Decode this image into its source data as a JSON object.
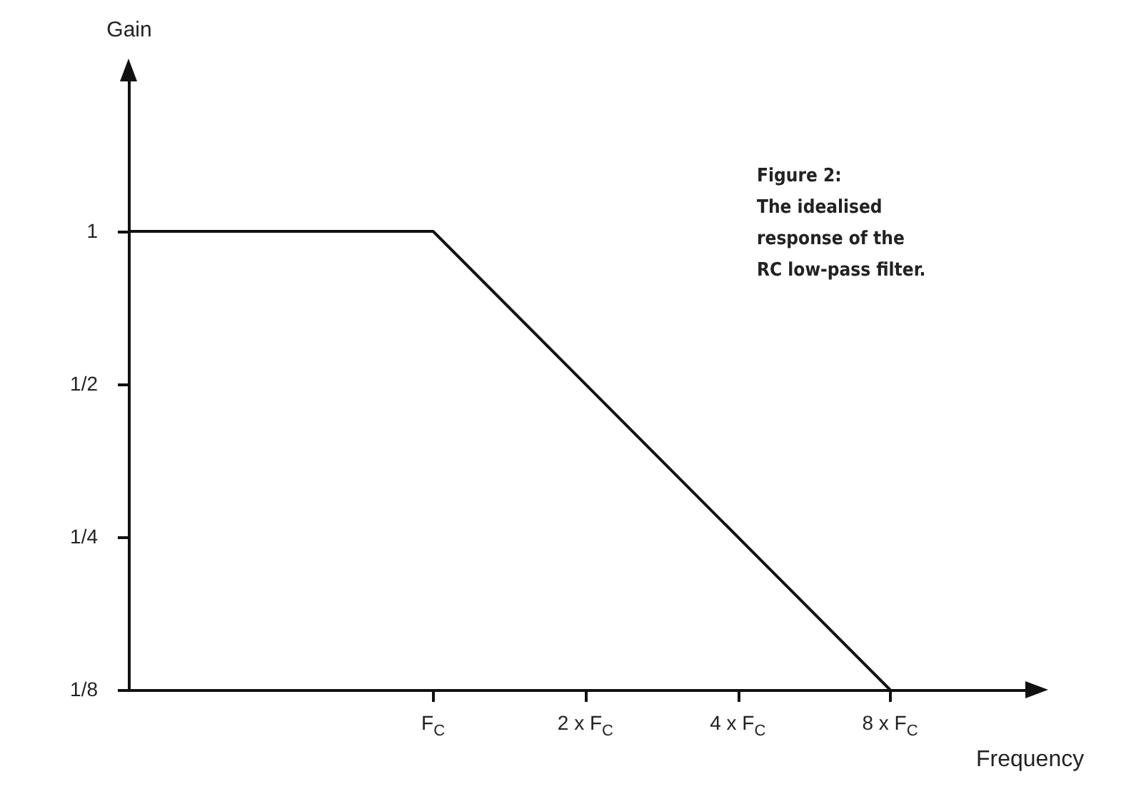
{
  "chart_data": {
    "type": "line",
    "xlabel": "Frequency",
    "ylabel": "Gain",
    "annotations": [
      "Figure 2:\nThe idealised\nresponse of the\nRC low-pass filter."
    ],
    "x": [
      0.25,
      1,
      8
    ],
    "series": [
      {
        "color": "#111111",
        "values": [
          1,
          1,
          0.125
        ]
      }
    ],
    "log": "xy",
    "xlim": [
      0.25,
      15
    ],
    "ylim": [
      0.125,
      2
    ],
    "xticks": [
      {
        "value": 1,
        "label": "F$_{C}$"
      },
      {
        "value": 2,
        "label": "2 x F$_{C}$"
      },
      {
        "value": 4,
        "label": "4 x F$_{C}$"
      },
      {
        "value": 8,
        "label": "8 x F$_{C}$"
      }
    ],
    "yticks": [
      {
        "value": 0.125,
        "label": "1/8"
      },
      {
        "value": 0.25,
        "label": "1/4"
      },
      {
        "value": 0.5,
        "label": "1/2"
      },
      {
        "value": 1,
        "label": "1"
      }
    ],
    "grid": false,
    "marker": "none",
    "line_style": "solid"
  }
}
